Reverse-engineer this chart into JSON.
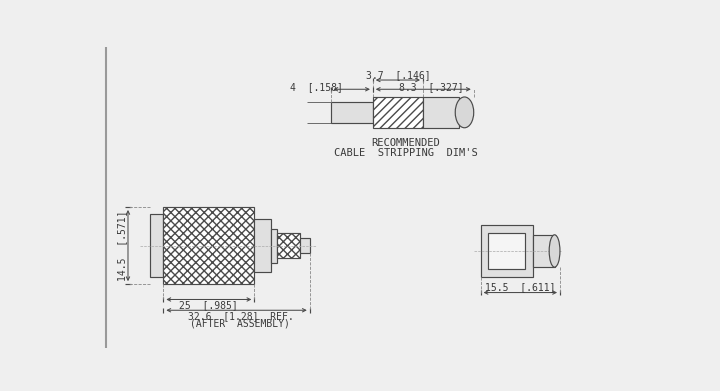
{
  "bg_color": "#efefef",
  "line_color": "#4a4a4a",
  "text_color": "#3a3a3a",
  "dim_14_5": "14.5  [.571]",
  "dim_25": "25  [.985]",
  "dim_32_6": "32.6  [1.28]  REF.",
  "dim_after": "(AFTER  ASSEMBLY)",
  "dim_4": "4  [.158]",
  "dim_3_7": "3.7  [.146]",
  "dim_8_3": "8.3  [.327]",
  "dim_15_5": "15.5  [.611]",
  "rec_label1": "RECOMMENDED",
  "rec_label2": "CABLE  STRIPPING  DIM'S",
  "font_size": 7.0
}
